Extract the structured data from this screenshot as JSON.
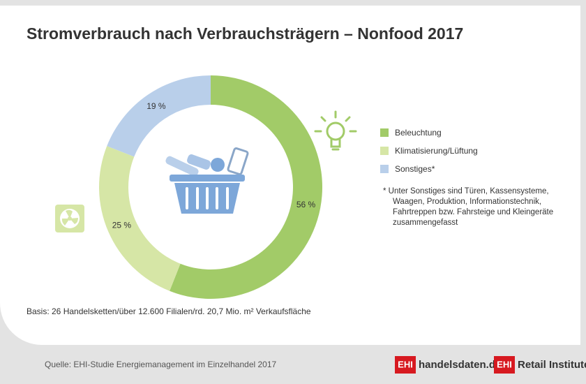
{
  "chart_data": {
    "type": "donut",
    "title": "Stromverbrauch nach Verbrauchsträgern – Nonfood 2017",
    "categories": [
      "Beleuchtung",
      "Klimatisierung/Lüftung",
      "Sonstiges*"
    ],
    "values": [
      56,
      25,
      19
    ],
    "value_labels": [
      "56 %",
      "25 %",
      "19 %"
    ],
    "colors": [
      "#a2cb68",
      "#d6e6a6",
      "#b9cfea"
    ],
    "note": [
      "*  Unter Sonstiges sind Türen, Kassensysteme,",
      "Waagen, Produktion, Informationstechnik,",
      "Fahrtreppen bzw. Fahrsteige und Kleingeräte",
      "zusammengefasst"
    ],
    "basis": "Basis: 26 Handelsketten/über 12.600 Filialen/rd. 20,7 Mio. m² Verkaufsfläche",
    "source": "Quelle: EHI-Studie Energiemanagement im Einzelhandel 2017",
    "logos": [
      {
        "mark": "EHI",
        "text": "handelsdaten.de"
      },
      {
        "mark": "EHI",
        "text": "Retail Institute®"
      }
    ]
  }
}
